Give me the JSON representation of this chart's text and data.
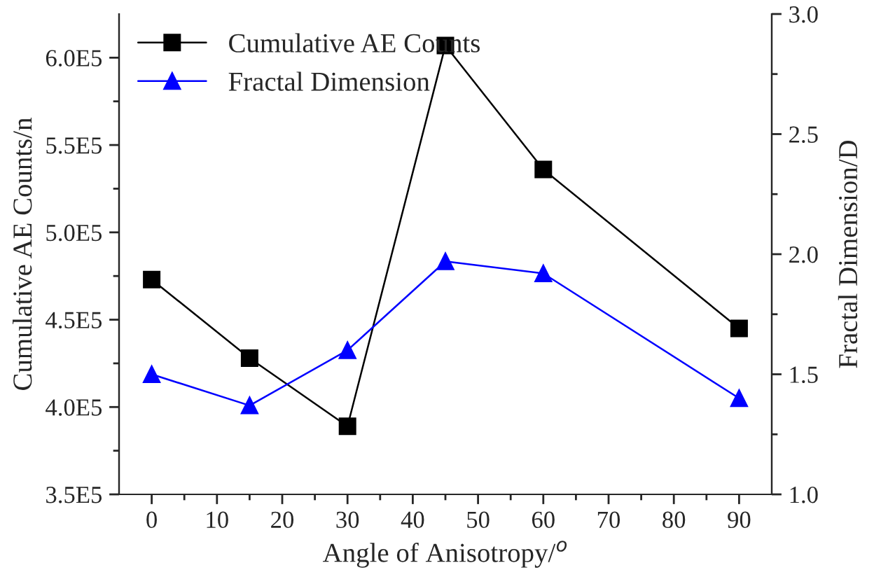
{
  "chart_data": {
    "type": "line",
    "xlabel": "Angle of Anisotropy/$^{o}$",
    "ylabel": "Cumulative AE Counts/n",
    "y2label": "Fractal Dimension/D",
    "x": [
      0,
      15,
      30,
      45,
      60,
      90
    ],
    "series": [
      {
        "name": "Cumulative AE Counts",
        "color": "#000000",
        "marker": "square",
        "values": [
          473000,
          428000,
          389000,
          607000,
          536000,
          445000
        ]
      },
      {
        "name": "Fractal Dimension",
        "color": "#0000ff",
        "marker": "triangle",
        "axis": "y2",
        "values": [
          1.5,
          1.37,
          1.6,
          1.97,
          1.92,
          1.4
        ]
      }
    ],
    "xlim": [
      -5,
      95
    ],
    "xticks": [
      0,
      10,
      20,
      30,
      40,
      50,
      60,
      70,
      80,
      90
    ],
    "ylim": [
      350000,
      625000
    ],
    "yticks": [
      {
        "value": 350000,
        "label": "3.5E5"
      },
      {
        "value": 400000,
        "label": "4.0E5"
      },
      {
        "value": 450000,
        "label": "4.5E5"
      },
      {
        "value": 500000,
        "label": "5.0E5"
      },
      {
        "value": 550000,
        "label": "5.5E5"
      },
      {
        "value": 600000,
        "label": "6.0E5"
      }
    ],
    "y2lim": [
      1.0,
      3.0
    ],
    "y2ticks": [
      {
        "value": 1.0,
        "label": "1.0"
      },
      {
        "value": 1.5,
        "label": "1.5"
      },
      {
        "value": 2.0,
        "label": "2.0"
      },
      {
        "value": 2.5,
        "label": "2.5"
      },
      {
        "value": 3.0,
        "label": "3.0"
      }
    ],
    "legend": "top left",
    "grid": false,
    "line_style": "solid"
  }
}
